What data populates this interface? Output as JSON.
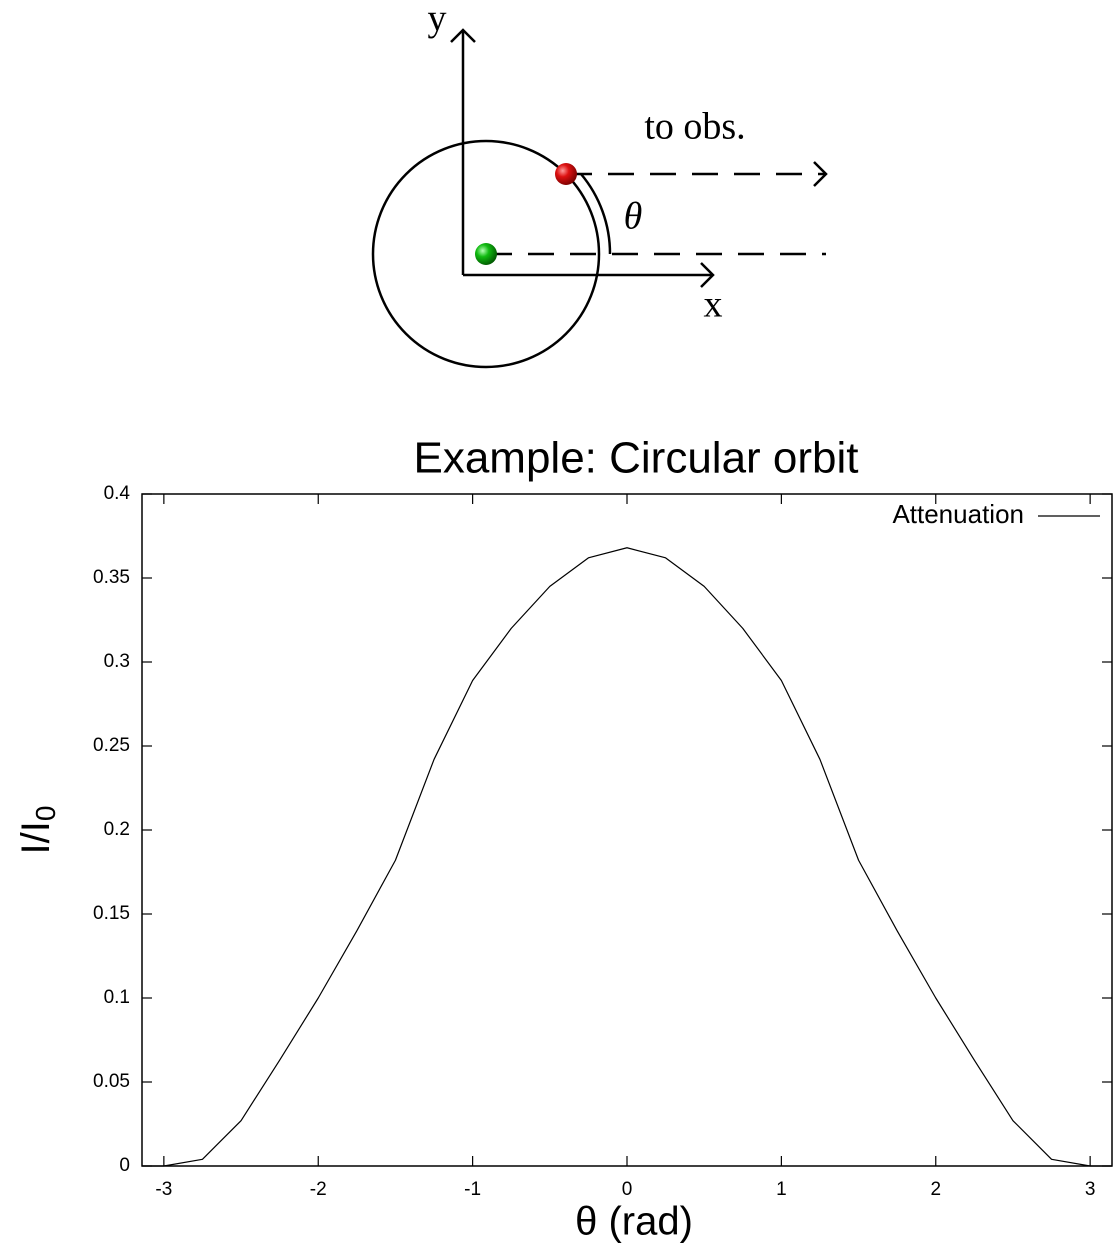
{
  "diagram": {
    "y_axis": "y",
    "x_axis": "x",
    "observer": "to obs.",
    "angle": "θ"
  },
  "chart_data": {
    "type": "line",
    "title": "Example: Circular orbit",
    "xlabel": "θ (rad)",
    "ylabel": {
      "text": "I/I",
      "subscript": "0"
    },
    "x": [
      -3.14,
      -3,
      -2.75,
      -2.5,
      -2.25,
      -2,
      -1.75,
      -1.5,
      -1.25,
      -1,
      -0.75,
      -0.5,
      -0.25,
      0,
      0.25,
      0.5,
      0.75,
      1,
      1.25,
      1.5,
      1.75,
      2,
      2.25,
      2.5,
      2.75,
      3,
      3.14
    ],
    "series": [
      {
        "name": "Attenuation",
        "color": "#000000",
        "values": [
          0,
          0,
          0.004,
          0.027,
          0.063,
          0.1,
          0.14,
          0.182,
          0.242,
          0.289,
          0.32,
          0.345,
          0.362,
          0.368,
          0.362,
          0.345,
          0.32,
          0.289,
          0.242,
          0.182,
          0.14,
          0.1,
          0.063,
          0.027,
          0.004,
          0,
          0
        ]
      }
    ],
    "xlim": [
      -3.1416,
      3.1416
    ],
    "ylim": [
      0,
      0.4
    ],
    "xticks": [
      -3,
      -2,
      -1,
      0,
      1,
      2,
      3
    ],
    "yticks": [
      0,
      0.05,
      0.1,
      0.15,
      0.2,
      0.25,
      0.3,
      0.35,
      0.4
    ],
    "legend": "upper right",
    "grid": false
  }
}
